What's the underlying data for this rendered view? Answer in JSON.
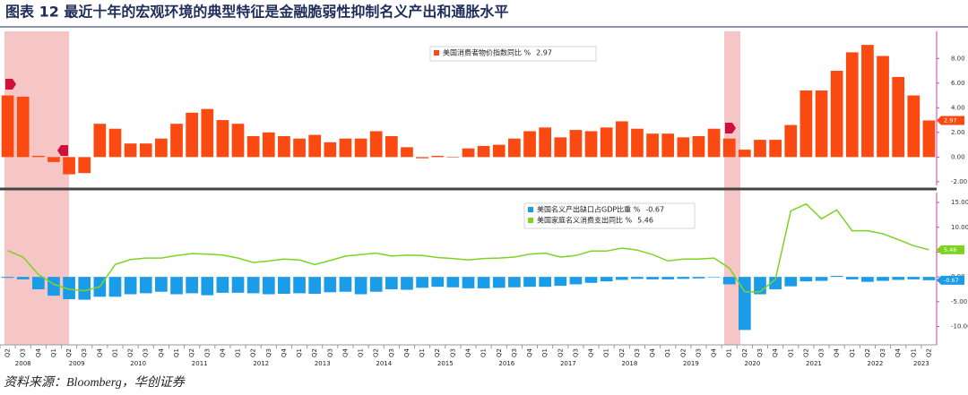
{
  "title": "图表 12 最近十年的宏观环境的典型特征是金融脆弱性抑制名义产出和通胀水平",
  "source": "资料来源：Bloomberg，华创证券",
  "chart_data": [
    {
      "type": "bar",
      "ylim": [
        -2.3,
        10.2
      ],
      "yticks": [
        {
          "value": -2,
          "label": "-2.00"
        },
        {
          "value": 0,
          "label": "0.00"
        },
        {
          "value": 2,
          "label": "2.00"
        },
        {
          "value": 4,
          "label": "4.00"
        },
        {
          "value": 6,
          "label": "6.00"
        },
        {
          "value": 8,
          "label": "8.00"
        }
      ],
      "series": [
        {
          "name": "美国消费者物价指数同比 %",
          "color": "#fa4a12",
          "values": [
            5.0,
            4.9,
            0.1,
            -0.4,
            -1.4,
            -1.3,
            2.7,
            2.3,
            1.1,
            1.1,
            1.5,
            2.7,
            3.6,
            3.9,
            3.0,
            2.7,
            1.7,
            2.0,
            1.7,
            1.5,
            1.8,
            1.2,
            1.5,
            1.5,
            2.1,
            1.7,
            0.8,
            -0.1,
            0.1,
            0.0,
            0.7,
            0.9,
            1.0,
            1.5,
            2.1,
            2.4,
            1.6,
            2.2,
            2.1,
            2.4,
            2.9,
            2.3,
            1.9,
            1.9,
            1.6,
            1.7,
            2.3,
            1.5,
            0.6,
            1.4,
            1.4,
            2.6,
            5.4,
            5.4,
            7.0,
            8.5,
            9.1,
            8.2,
            6.5,
            5.0,
            2.97
          ]
        }
      ]
    },
    {
      "type": "bar_line",
      "categories": [
        "Q2",
        "Q3",
        "Q4",
        "Q1",
        "Q2",
        "Q3",
        "Q4",
        "Q1",
        "Q2",
        "Q3",
        "Q4",
        "Q1",
        "Q2",
        "Q3",
        "Q4",
        "Q1",
        "Q2",
        "Q3",
        "Q4",
        "Q1",
        "Q2",
        "Q3",
        "Q4",
        "Q1",
        "Q2",
        "Q3",
        "Q4",
        "Q1",
        "Q2",
        "Q3",
        "Q4",
        "Q1",
        "Q2",
        "Q3",
        "Q4",
        "Q1",
        "Q2",
        "Q3",
        "Q4",
        "Q1",
        "Q2",
        "Q3",
        "Q4",
        "Q1",
        "Q2",
        "Q3",
        "Q4",
        "Q1",
        "Q2",
        "Q3",
        "Q4",
        "Q1",
        "Q2",
        "Q3",
        "Q4",
        "Q1",
        "Q2",
        "Q3",
        "Q4",
        "Q1",
        "Q2"
      ],
      "year_labels": [
        "2008",
        "2009",
        "2010",
        "2011",
        "2012",
        "2013",
        "2014",
        "2015",
        "2016",
        "2017",
        "2018",
        "2019",
        "2020",
        "2021",
        "2022",
        "2023"
      ],
      "ylim": [
        -13.7,
        17
      ],
      "yticks": [
        {
          "value": -10,
          "label": "-10.00"
        },
        {
          "value": -5,
          "label": "-5.00"
        },
        {
          "value": 0,
          "label": "0.00"
        },
        {
          "value": 5,
          "label": "5.00"
        },
        {
          "value": 10,
          "label": "10.00"
        },
        {
          "value": 15,
          "label": "15.00"
        }
      ],
      "series": [
        {
          "name": "美国名义产出缺口占GDP比重 %",
          "color": "#1a9ce8",
          "kind": "bar",
          "values": [
            -0.2,
            -0.5,
            -2.5,
            -3.8,
            -4.5,
            -4.6,
            -4.0,
            -4.0,
            -3.5,
            -3.3,
            -3.0,
            -3.5,
            -3.3,
            -3.7,
            -3.2,
            -3.2,
            -3.3,
            -3.5,
            -3.4,
            -3.3,
            -3.4,
            -3.1,
            -3.0,
            -3.5,
            -3.0,
            -2.5,
            -2.6,
            -2.2,
            -2.0,
            -2.1,
            -2.3,
            -2.3,
            -2.2,
            -2.1,
            -2.0,
            -2.0,
            -1.8,
            -1.5,
            -1.2,
            -0.9,
            -0.6,
            -0.4,
            -0.5,
            -0.5,
            -0.4,
            -0.3,
            -0.1,
            -1.5,
            -10.7,
            -3.5,
            -2.5,
            -1.9,
            -0.9,
            -0.8,
            0.2,
            -0.5,
            -1.0,
            -0.8,
            -0.6,
            -0.5,
            -0.67
          ]
        },
        {
          "name": "美国家庭名义消费支出同比 %",
          "color": "#7ed321",
          "kind": "line",
          "values": [
            5.3,
            4.0,
            0.5,
            -1.5,
            -2.5,
            -2.8,
            -2.0,
            2.5,
            3.5,
            3.8,
            3.8,
            4.3,
            4.7,
            4.6,
            4.4,
            3.8,
            2.9,
            3.2,
            3.6,
            3.4,
            2.5,
            3.3,
            4.2,
            4.5,
            4.8,
            4.2,
            4.4,
            4.3,
            3.9,
            3.7,
            3.4,
            3.7,
            3.8,
            4.0,
            4.6,
            4.8,
            4.0,
            4.3,
            5.2,
            5.2,
            5.8,
            5.4,
            4.5,
            3.2,
            3.6,
            3.6,
            3.8,
            1.8,
            -3.0,
            -3.0,
            -0.5,
            13.3,
            14.7,
            11.7,
            13.5,
            9.3,
            9.3,
            8.7,
            7.5,
            6.3,
            5.46
          ]
        }
      ]
    }
  ]
}
